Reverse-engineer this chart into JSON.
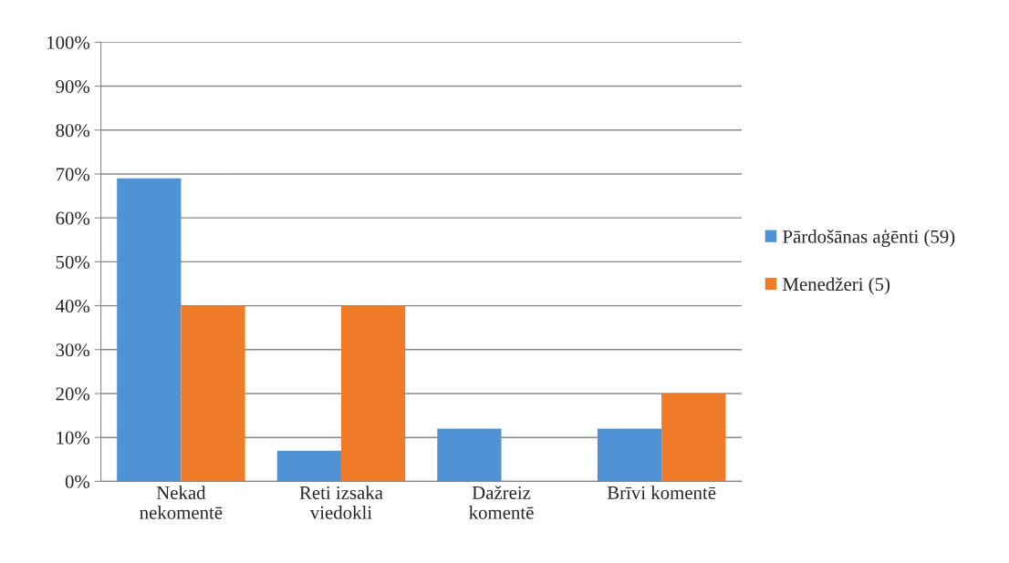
{
  "chart_data": {
    "type": "bar",
    "categories": [
      "Nekad\nnekomentē",
      "Reti izsaka\nviedokli",
      "Dažreiz\nkomentē",
      "Brīvi komentē"
    ],
    "series": [
      {
        "name": "Pārdošānas aģēnti (59)",
        "color": "#4f93d6",
        "values": [
          69,
          7,
          12,
          12
        ]
      },
      {
        "name": "Menedžeri (5)",
        "color": "#f07c2a",
        "values": [
          40,
          40,
          0,
          20
        ]
      }
    ],
    "ylim": [
      0,
      100
    ],
    "yticks": [
      {
        "value": 0,
        "label": "0%"
      },
      {
        "value": 10,
        "label": "10%"
      },
      {
        "value": 20,
        "label": "20%"
      },
      {
        "value": 30,
        "label": "30%"
      },
      {
        "value": 40,
        "label": "40%"
      },
      {
        "value": 50,
        "label": "50%"
      },
      {
        "value": 60,
        "label": "60%"
      },
      {
        "value": 70,
        "label": "70%"
      },
      {
        "value": 80,
        "label": "80%"
      },
      {
        "value": 90,
        "label": "90%"
      },
      {
        "value": 100,
        "label": "100%"
      }
    ],
    "grid": "y",
    "legend": "right"
  }
}
